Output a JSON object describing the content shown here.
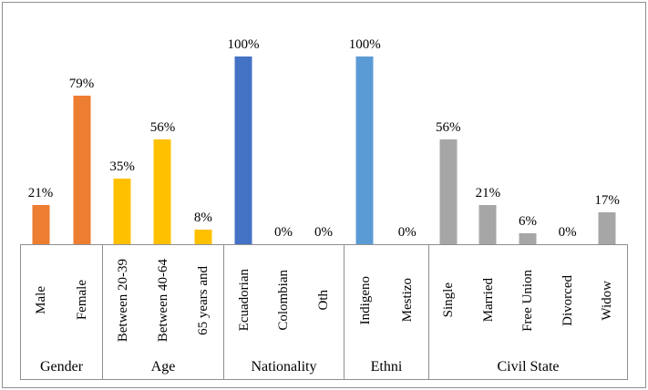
{
  "chart_data": {
    "type": "bar",
    "title": "",
    "xlabel": "",
    "ylabel": "",
    "ylim": [
      0,
      100
    ],
    "value_suffix": "%",
    "layout_hints": {
      "grid": false,
      "legend": false,
      "y_axis_visible": false,
      "data_labels": "above bars",
      "category_labels_rotation": "90deg bottom-to-top",
      "axis_line_color": "#8f8f8f",
      "background": "#ffffff"
    },
    "groups": [
      {
        "name": "Gender",
        "color": "#ED7D31",
        "categories": [
          {
            "label": "Male",
            "value": 21,
            "display": "21%"
          },
          {
            "label": "Female",
            "value": 79,
            "display": "79%"
          }
        ]
      },
      {
        "name": "Age",
        "color": "#FFC000",
        "categories": [
          {
            "label": "Between 20-39",
            "value": 35,
            "display": "35%"
          },
          {
            "label": "Between 40-64",
            "value": 56,
            "display": "56%"
          },
          {
            "label": "65 years and",
            "value": 8,
            "display": "8%"
          }
        ]
      },
      {
        "name": "Nationality",
        "color": "#4472C4",
        "categories": [
          {
            "label": "Ecuadorian",
            "value": 100,
            "display": "100%"
          },
          {
            "label": "Colombian",
            "value": 0,
            "display": "0%"
          },
          {
            "label": "Oth",
            "value": 0,
            "display": "0%"
          }
        ]
      },
      {
        "name": "Ethni",
        "color": "#5B9BD5",
        "categories": [
          {
            "label": "Indigeno",
            "value": 100,
            "display": "100%"
          },
          {
            "label": "Mestizo",
            "value": 0,
            "display": "0%"
          }
        ]
      },
      {
        "name": "Civil State",
        "color": "#A6A6A6",
        "categories": [
          {
            "label": "Single",
            "value": 56,
            "display": "56%"
          },
          {
            "label": "Married",
            "value": 21,
            "display": "21%"
          },
          {
            "label": "Free Union",
            "value": 6,
            "display": "6%"
          },
          {
            "label": "Divorced",
            "value": 0,
            "display": "0%"
          },
          {
            "label": "Widow",
            "value": 17,
            "display": "17%"
          }
        ]
      }
    ]
  }
}
